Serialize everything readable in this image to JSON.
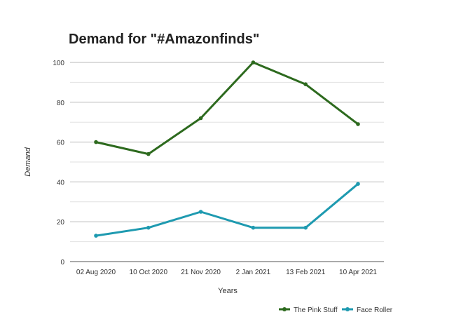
{
  "chart_data": {
    "type": "line",
    "title": "Demand for \"#Amazonfinds\"",
    "xlabel": "Years",
    "ylabel": "Demand",
    "categories": [
      "02 Aug 2020",
      "10 Oct 2020",
      "21 Nov 2020",
      "2 Jan 2021",
      "13 Feb 2021",
      "10 Apr 2021"
    ],
    "series": [
      {
        "name": "The Pink Stuff",
        "color": "#2d6a1e",
        "values": [
          60,
          54,
          72,
          100,
          89,
          69
        ]
      },
      {
        "name": "Face Roller",
        "color": "#1e9ab0",
        "values": [
          13,
          17,
          25,
          17,
          17,
          39
        ]
      }
    ],
    "ylim": [
      0,
      100
    ],
    "yticks": [
      0,
      20,
      40,
      60,
      80,
      100
    ],
    "grid": true,
    "legend": "bottom-right"
  }
}
